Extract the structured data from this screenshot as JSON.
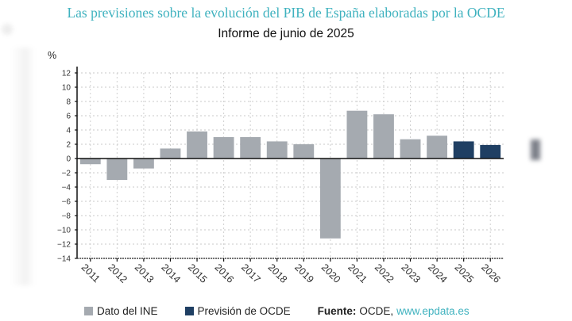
{
  "chart_data": {
    "type": "bar",
    "title": "Las previsiones sobre la evolución del PIB de España elaboradas por la OCDE",
    "subtitle": "Informe de junio de 2025",
    "ylabel": "%",
    "xlabel": "",
    "ylim": [
      -14,
      12
    ],
    "yticks": [
      "12",
      "10",
      "8",
      "6",
      "4",
      "2",
      "0",
      "−2",
      "−4",
      "−6",
      "−8",
      "−10",
      "−12",
      "−14"
    ],
    "ytick_values": [
      12,
      10,
      8,
      6,
      4,
      2,
      0,
      -2,
      -4,
      -6,
      -8,
      -10,
      -12,
      -14
    ],
    "grid": true,
    "categories": [
      "2011",
      "2012",
      "2013",
      "2014",
      "2015",
      "2016",
      "2017",
      "2018",
      "2019",
      "2020",
      "2021",
      "2022",
      "2023",
      "2024",
      "2025",
      "2026"
    ],
    "values": [
      -0.8,
      -3.0,
      -1.4,
      1.4,
      3.8,
      3.0,
      3.0,
      2.4,
      2.0,
      -11.2,
      6.7,
      6.2,
      2.7,
      3.2,
      2.4,
      1.9
    ],
    "series_type": [
      "ine",
      "ine",
      "ine",
      "ine",
      "ine",
      "ine",
      "ine",
      "ine",
      "ine",
      "ine",
      "ine",
      "ine",
      "ine",
      "ine",
      "ocde",
      "ocde"
    ],
    "colors": {
      "ine": "#a5aab0",
      "ocde": "#1f3f63"
    },
    "legend": [
      {
        "key": "ine",
        "label": "Dato del INE"
      },
      {
        "key": "ocde",
        "label": "Previsión de OCDE"
      }
    ],
    "legend_position": "bottom"
  },
  "source": {
    "label": "Fuente:",
    "text": "OCDE,",
    "link": "www.epdata.es"
  }
}
